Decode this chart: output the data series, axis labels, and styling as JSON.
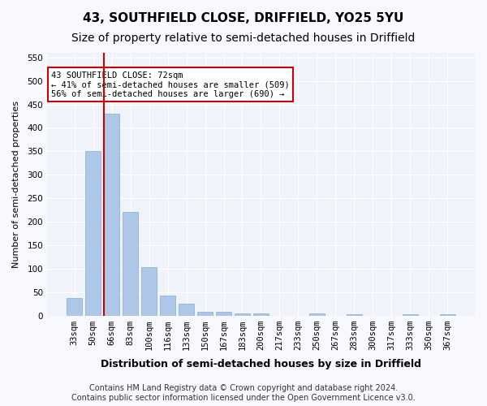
{
  "title1": "43, SOUTHFIELD CLOSE, DRIFFIELD, YO25 5YU",
  "title2": "Size of property relative to semi-detached houses in Driffield",
  "xlabel": "Distribution of semi-detached houses by size in Driffield",
  "ylabel": "Number of semi-detached properties",
  "categories": [
    "33sqm",
    "50sqm",
    "66sqm",
    "83sqm",
    "100sqm",
    "116sqm",
    "133sqm",
    "150sqm",
    "167sqm",
    "183sqm",
    "200sqm",
    "217sqm",
    "233sqm",
    "250sqm",
    "267sqm",
    "283sqm",
    "300sqm",
    "317sqm",
    "333sqm",
    "350sqm",
    "367sqm"
  ],
  "values": [
    38,
    350,
    430,
    220,
    103,
    43,
    25,
    8,
    8,
    5,
    5,
    0,
    0,
    5,
    0,
    3,
    0,
    0,
    3,
    0,
    2
  ],
  "bar_color": "#aec6e8",
  "bar_edge_color": "#7aadd4",
  "vline_x": 2,
  "vline_color": "#cc0000",
  "annotation_text": "43 SOUTHFIELD CLOSE: 72sqm\n← 41% of semi-detached houses are smaller (509)\n56% of semi-detached houses are larger (690) →",
  "annotation_box_color": "#ffffff",
  "annotation_box_edge": "#cc0000",
  "footer": "Contains HM Land Registry data © Crown copyright and database right 2024.\nContains public sector information licensed under the Open Government Licence v3.0.",
  "ylim": [
    0,
    560
  ],
  "yticks": [
    0,
    50,
    100,
    150,
    200,
    250,
    300,
    350,
    400,
    450,
    500,
    550
  ],
  "bg_color": "#f0f4fa",
  "grid_color": "#ffffff",
  "title1_fontsize": 11,
  "title2_fontsize": 10,
  "xlabel_fontsize": 9,
  "ylabel_fontsize": 8,
  "tick_fontsize": 7.5,
  "footer_fontsize": 7
}
